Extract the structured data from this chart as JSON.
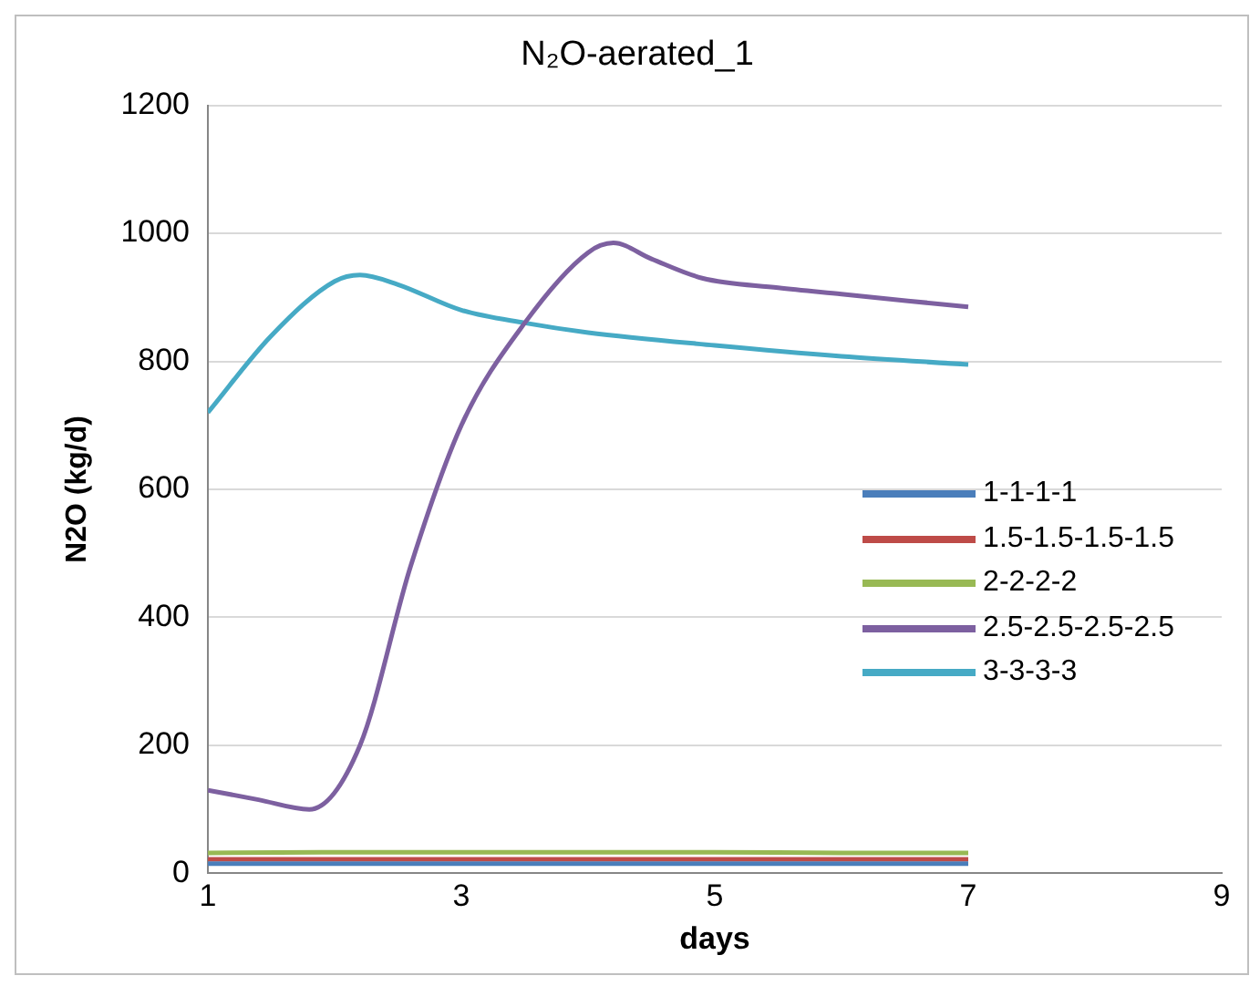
{
  "chart_data": {
    "type": "line",
    "title": "N₂O-aerated_1",
    "xlabel": "days",
    "ylabel": "N2O (kg/d)",
    "xlim": [
      1,
      9
    ],
    "xticks": [
      1,
      3,
      5,
      7,
      9
    ],
    "ylim": [
      0,
      1200
    ],
    "yticks": [
      0,
      200,
      400,
      600,
      800,
      1000,
      1200
    ],
    "grid": "y",
    "legend": "right",
    "marker": "none",
    "line_style": "solid",
    "series": [
      {
        "name": "1-1-1-1",
        "color": "#4a7ebb",
        "x": [
          1,
          2,
          3,
          4,
          5,
          6,
          7
        ],
        "values": [
          15,
          15,
          15,
          15,
          15,
          15,
          15
        ]
      },
      {
        "name": "1.5-1.5-1.5-1.5",
        "color": "#be4b48",
        "x": [
          1,
          2,
          3,
          4,
          5,
          6,
          7
        ],
        "values": [
          22,
          22,
          22,
          22,
          22,
          22,
          22
        ]
      },
      {
        "name": "2-2-2-2",
        "color": "#98b954",
        "x": [
          1,
          2,
          3,
          4,
          5,
          6,
          7
        ],
        "values": [
          32,
          33,
          33,
          33,
          33,
          32,
          32
        ]
      },
      {
        "name": "2.5-2.5-2.5-2.5",
        "color": "#7d60a0",
        "x": [
          1,
          1.4,
          1.8,
          2.2,
          2.6,
          3,
          3.5,
          4,
          4.2,
          4.5,
          4.9,
          5.5,
          6,
          7
        ],
        "values": [
          130,
          115,
          100,
          200,
          480,
          700,
          860,
          970,
          985,
          960,
          930,
          915,
          905,
          885
        ]
      },
      {
        "name": "3-3-3-3",
        "color": "#46aac5",
        "x": [
          1,
          1.5,
          2,
          2.2,
          2.5,
          3,
          3.5,
          4,
          5,
          6,
          7
        ],
        "values": [
          720,
          840,
          925,
          935,
          920,
          880,
          860,
          845,
          825,
          808,
          795
        ]
      }
    ]
  }
}
